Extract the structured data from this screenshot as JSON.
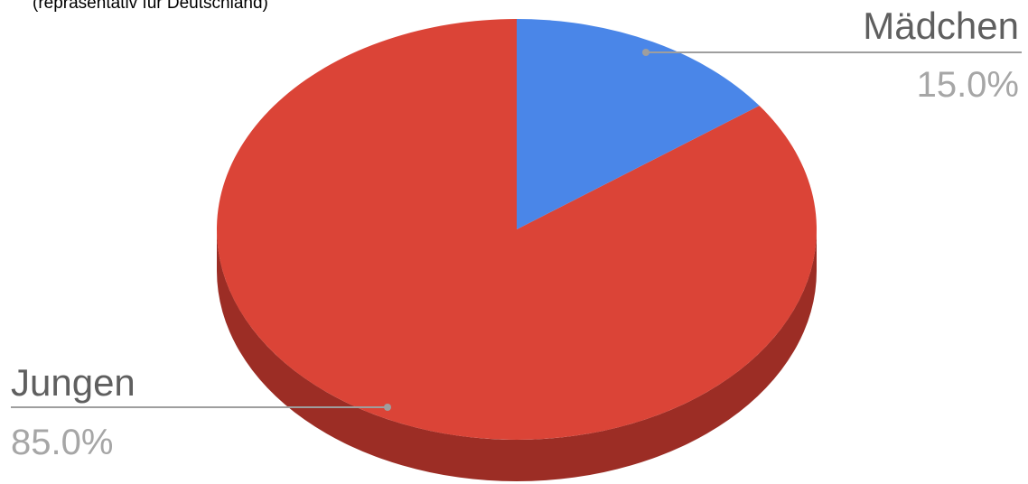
{
  "chart_data": {
    "type": "pie",
    "style": "3d",
    "subtitle": "(repräsentativ für Deutschland)",
    "slices": [
      {
        "label": "Mädchen",
        "value": 15.0,
        "display": "15.0%",
        "color": "#4a86e8"
      },
      {
        "label": "Jungen",
        "value": 85.0,
        "display": "85.0%",
        "color": "#db4437"
      }
    ]
  },
  "colors": {
    "jungen_side": "#9c2d25",
    "leader_line": "#9e9e9e"
  }
}
